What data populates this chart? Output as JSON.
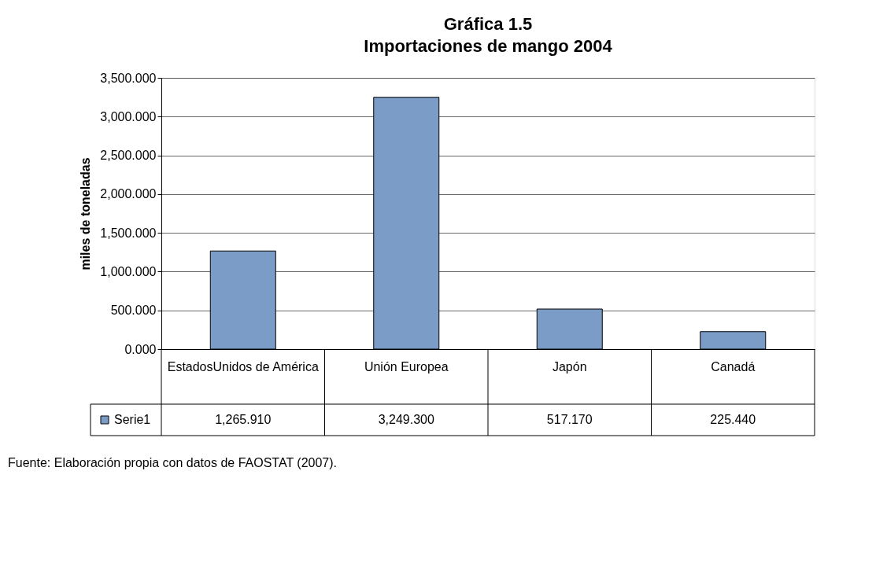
{
  "chart_data": {
    "type": "bar",
    "title": "Gráfica 1.5",
    "subtitle": "Importaciones de mango 2004",
    "ylabel": "miles de toneladas",
    "categories": [
      "EstadosUnidos de América",
      "Unión Europea",
      "Japón",
      "Canadá"
    ],
    "series": [
      {
        "name": "Serie1",
        "color": "#7a9cc6",
        "values": [
          1265.91,
          3249.3,
          517.17,
          225.44
        ],
        "value_labels": [
          "1,265.910",
          "3,249.300",
          "517.170",
          "225.440"
        ]
      }
    ],
    "ylim": [
      0,
      3500
    ],
    "yticks": [
      {
        "value": 0,
        "label": "0.000"
      },
      {
        "value": 500,
        "label": "500.000"
      },
      {
        "value": 1000,
        "label": "1,000.000"
      },
      {
        "value": 1500,
        "label": "1,500.000"
      },
      {
        "value": 2000,
        "label": "2,000.000"
      },
      {
        "value": 2500,
        "label": "2,500.000"
      },
      {
        "value": 3000,
        "label": "3,000.000"
      },
      {
        "value": 3500,
        "label": "3,500.000"
      }
    ],
    "grid": "y",
    "legend": "bottom left",
    "annotations": [
      "Fuente: Elaboración propia con datos de FAOSTAT (2007)."
    ]
  }
}
